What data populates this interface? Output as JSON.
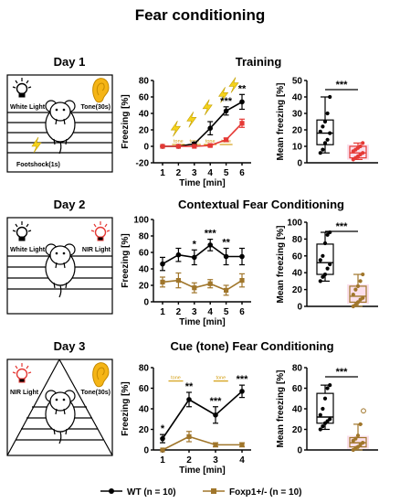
{
  "page": {
    "title": "Fear conditioning",
    "legend": {
      "wt": "WT (n = 10)",
      "foxp1": "Foxp1+/- (n = 10)"
    },
    "colors": {
      "wt": "#000000",
      "foxp1": "#e53935",
      "foxp1_day23": "#a0762b",
      "tone": "#d4a017",
      "bolt": "#f5d21c"
    }
  },
  "chart_data": [
    {
      "id": "day1",
      "type": "line",
      "day_label": "Day  1",
      "title": "Training",
      "scene_labels": {
        "left": "White Light",
        "right": "Tone(30s)",
        "bottom": "Footshock(1s)"
      },
      "xlabel": "Time [min]",
      "ylabel": "Freezing [%]",
      "x": [
        1,
        2,
        3,
        4,
        5,
        6
      ],
      "ylim": [
        -20,
        80
      ],
      "yticks": [
        -20,
        0,
        20,
        40,
        60,
        80
      ],
      "series": [
        {
          "name": "WT",
          "values": [
            0,
            0,
            3,
            22,
            43,
            54
          ],
          "err": [
            0,
            0,
            2,
            8,
            5,
            9
          ]
        },
        {
          "name": "Foxp1+/-",
          "values": [
            0,
            0,
            0,
            1,
            8,
            28
          ],
          "err": [
            0,
            0,
            0,
            1,
            2,
            5
          ]
        }
      ],
      "tone_label": "tone",
      "tone_x": [
        2,
        3,
        4,
        5
      ],
      "shock_x": [
        2,
        3,
        4,
        5,
        6
      ],
      "sig": [
        {
          "x": 5,
          "text": "***"
        },
        {
          "x": 6,
          "text": "**"
        }
      ],
      "box": {
        "ylabel": "Mean freezing [%]",
        "ylim": [
          0,
          50
        ],
        "yticks": [
          0,
          10,
          20,
          30,
          40,
          50
        ],
        "sig": "***",
        "groups": [
          {
            "name": "WT",
            "min": 6,
            "q1": 11,
            "median": 18,
            "q3": 26,
            "max": 40,
            "points": [
              6,
              8,
              12,
              14,
              18,
              19,
              22,
              25,
              30,
              40
            ]
          },
          {
            "name": "Foxp1+/-",
            "min": 2,
            "q1": 3,
            "median": 6,
            "q3": 10,
            "max": 12,
            "points": [
              2,
              3,
              4,
              5,
              6,
              7,
              8,
              9,
              10,
              12
            ]
          }
        ]
      }
    },
    {
      "id": "day2",
      "type": "line",
      "day_label": "Day  2",
      "title": "Contextual Fear Conditioning",
      "scene_labels": {
        "left": "White Light",
        "right": "NIR Light"
      },
      "xlabel": "Time [min]",
      "ylabel": "Freezing [%]",
      "x": [
        1,
        2,
        3,
        4,
        5,
        6
      ],
      "ylim": [
        0,
        100
      ],
      "yticks": [
        0,
        20,
        40,
        60,
        80,
        100
      ],
      "series": [
        {
          "name": "WT",
          "values": [
            46,
            57,
            54,
            69,
            55,
            55
          ],
          "err": [
            8,
            8,
            9,
            7,
            10,
            10
          ]
        },
        {
          "name": "Foxp1+/-",
          "values": [
            24,
            26,
            17,
            22,
            14,
            26
          ],
          "err": [
            6,
            9,
            6,
            5,
            6,
            8
          ]
        }
      ],
      "sig": [
        {
          "x": 3,
          "text": "*"
        },
        {
          "x": 4,
          "text": "***"
        },
        {
          "x": 5,
          "text": "**"
        }
      ],
      "box": {
        "ylabel": "Mean freezing [%]",
        "ylim": [
          0,
          100
        ],
        "yticks": [
          0,
          20,
          40,
          60,
          80,
          100
        ],
        "sig": "***",
        "groups": [
          {
            "name": "WT",
            "min": 30,
            "q1": 38,
            "median": 52,
            "q3": 74,
            "max": 88,
            "points": [
              30,
              35,
              38,
              45,
              50,
              55,
              60,
              75,
              85,
              88
            ]
          },
          {
            "name": "Foxp1+/-",
            "min": 0,
            "q1": 5,
            "median": 12,
            "q3": 24,
            "max": 38,
            "points": [
              0,
              2,
              5,
              8,
              10,
              14,
              20,
              24,
              30,
              38
            ]
          }
        ]
      }
    },
    {
      "id": "day3",
      "type": "line",
      "day_label": "Day  3",
      "title": "Cue (tone) Fear Conditioning",
      "scene_labels": {
        "left": "NIR Light",
        "right": "Tone(30s)"
      },
      "xlabel": "Time [min]",
      "ylabel": "Freezing [%]",
      "x": [
        1,
        2,
        3,
        4
      ],
      "ylim": [
        0,
        80
      ],
      "yticks": [
        0,
        20,
        40,
        60,
        80
      ],
      "series": [
        {
          "name": "WT",
          "values": [
            11,
            49,
            34,
            57
          ],
          "err": [
            4,
            7,
            8,
            6
          ]
        },
        {
          "name": "Foxp1+/-",
          "values": [
            0,
            13,
            5,
            5
          ],
          "err": [
            0,
            5,
            2,
            2
          ]
        }
      ],
      "tone_label": "tone",
      "tone_x": [
        1.5,
        3.2
      ],
      "sig": [
        {
          "x": 1,
          "text": "*"
        },
        {
          "x": 2,
          "text": "**"
        },
        {
          "x": 3,
          "text": "***"
        },
        {
          "x": 4,
          "text": "***"
        }
      ],
      "box": {
        "ylabel": "Mean freezing [%]",
        "ylim": [
          0,
          80
        ],
        "yticks": [
          0,
          20,
          40,
          60,
          80
        ],
        "sig": "***",
        "groups": [
          {
            "name": "WT",
            "min": 20,
            "q1": 26,
            "median": 32,
            "q3": 55,
            "max": 63,
            "points": [
              20,
              23,
              26,
              28,
              30,
              34,
              40,
              50,
              60,
              63
            ]
          },
          {
            "name": "Foxp1+/-",
            "min": 0,
            "q1": 3,
            "median": 7,
            "q3": 12,
            "max": 25,
            "points": [
              0,
              2,
              3,
              5,
              7,
              9,
              11,
              14,
              25
            ],
            "outliers": [
              38
            ]
          }
        ]
      }
    }
  ]
}
